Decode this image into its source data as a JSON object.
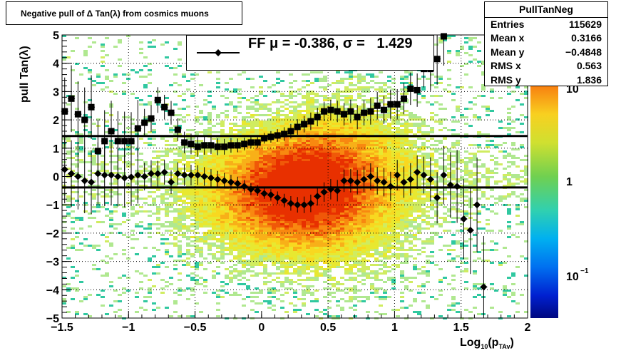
{
  "title": "Negative pull of Δ Tan(λ) from cosmics muons",
  "stats": {
    "name": "PullTanNeg",
    "rows": [
      {
        "label": "Entries",
        "value": "115629"
      },
      {
        "label": "Mean x",
        "value": "0.3166"
      },
      {
        "label": "Mean y",
        "value": "−0.4848"
      },
      {
        "label": "RMS x",
        "value": "0.563"
      },
      {
        "label": "RMS y",
        "value": "1.836"
      }
    ]
  },
  "legend": {
    "text": "FF μ = -0.386, σ =   1.429"
  },
  "colors": {
    "points": "#000000",
    "fit_lines": "#000000"
  },
  "chart_data": {
    "type": "heatmap",
    "title": "Negative pull of Δ Tan(λ) from cosmics muons",
    "xlabel": "Log10(pTAv)",
    "ylabel": "pull Tan(λ)",
    "xlim": [
      -1.5,
      2
    ],
    "ylim": [
      -5,
      5
    ],
    "x_ticks": [
      "−1.5",
      "−1",
      "−0.5",
      "0",
      "0.5",
      "1",
      "1.5",
      "2"
    ],
    "y_ticks": [
      "−5",
      "−4",
      "−3",
      "−2",
      "−1",
      "0",
      "1",
      "2",
      "3",
      "4",
      "5"
    ],
    "grid": true,
    "colorbar": {
      "scale": "log",
      "labels": [
        "10^-1",
        "1",
        "10"
      ]
    },
    "fit_lines": {
      "sigma": 1.429,
      "mu": -0.386
    },
    "series": [
      {
        "name": "FF",
        "marker": "diamond",
        "x": [
          -1.48,
          -1.43,
          -1.38,
          -1.33,
          -1.28,
          -1.23,
          -1.18,
          -1.13,
          -1.08,
          -1.03,
          -0.98,
          -0.93,
          -0.88,
          -0.83,
          -0.78,
          -0.73,
          -0.68,
          -0.63,
          -0.58,
          -0.53,
          -0.48,
          -0.43,
          -0.38,
          -0.33,
          -0.28,
          -0.23,
          -0.18,
          -0.13,
          -0.08,
          -0.03,
          0.02,
          0.07,
          0.12,
          0.17,
          0.22,
          0.27,
          0.32,
          0.37,
          0.42,
          0.47,
          0.52,
          0.57,
          0.62,
          0.67,
          0.72,
          0.77,
          0.82,
          0.87,
          0.92,
          0.97,
          1.02,
          1.07,
          1.12,
          1.17,
          1.22,
          1.27,
          1.32,
          1.37,
          1.42,
          1.47,
          1.52,
          1.57,
          1.62,
          1.67,
          1.72,
          1.77,
          1.82,
          1.87,
          1.92,
          1.97
        ],
        "y": [
          0.25,
          0.1,
          0.0,
          -0.15,
          -0.2,
          0.1,
          0.05,
          0.05,
          0.0,
          -0.05,
          -0.02,
          0.05,
          0.0,
          0.1,
          0.1,
          0.15,
          -0.2,
          0.1,
          0.05,
          0.05,
          0.05,
          0.0,
          -0.05,
          -0.1,
          -0.15,
          -0.2,
          -0.25,
          -0.35,
          -0.45,
          -0.5,
          -0.6,
          -0.65,
          -0.75,
          -0.85,
          -0.95,
          -1.0,
          -1.0,
          -0.95,
          -0.7,
          -0.55,
          -0.45,
          -0.5,
          -0.15,
          -0.15,
          -0.2,
          -0.1,
          0.0,
          -0.15,
          -0.2,
          -0.35,
          0.05,
          -0.2,
          -0.1,
          0.15,
          0.05,
          -0.1,
          -0.75,
          0.05,
          -0.3,
          -0.35,
          -1.5,
          -1.9,
          -1.0,
          -3.9,
          null,
          null,
          null,
          null,
          null,
          null
        ]
      },
      {
        "name": "",
        "marker": "square",
        "x": [
          -1.48,
          -1.43,
          -1.38,
          -1.33,
          -1.28,
          -1.23,
          -1.18,
          -1.13,
          -1.08,
          -1.03,
          -0.98,
          -0.93,
          -0.88,
          -0.83,
          -0.78,
          -0.73,
          -0.68,
          -0.63,
          -0.58,
          -0.53,
          -0.48,
          -0.43,
          -0.38,
          -0.33,
          -0.28,
          -0.23,
          -0.18,
          -0.13,
          -0.08,
          -0.03,
          0.02,
          0.07,
          0.12,
          0.17,
          0.22,
          0.27,
          0.32,
          0.37,
          0.42,
          0.47,
          0.52,
          0.57,
          0.62,
          0.67,
          0.72,
          0.77,
          0.82,
          0.87,
          0.92,
          0.97,
          1.02,
          1.07,
          1.12,
          1.17,
          1.22,
          1.27,
          1.32,
          1.37
        ],
        "y": [
          2.3,
          2.75,
          2.2,
          2.0,
          2.45,
          0.9,
          1.25,
          1.6,
          1.25,
          1.25,
          1.25,
          1.7,
          1.9,
          2.05,
          2.7,
          2.45,
          2.25,
          1.65,
          1.2,
          1.15,
          1.05,
          1.1,
          1.1,
          1.05,
          1.05,
          1.1,
          1.1,
          1.15,
          1.2,
          1.2,
          1.35,
          1.4,
          1.45,
          1.5,
          1.6,
          1.75,
          1.85,
          1.95,
          2.1,
          2.3,
          2.35,
          2.3,
          2.2,
          2.3,
          2.1,
          2.25,
          2.3,
          2.5,
          2.35,
          2.55,
          2.55,
          2.75,
          3.1,
          3.05,
          3.8,
          3.8,
          4.15,
          4.95
        ]
      }
    ]
  }
}
